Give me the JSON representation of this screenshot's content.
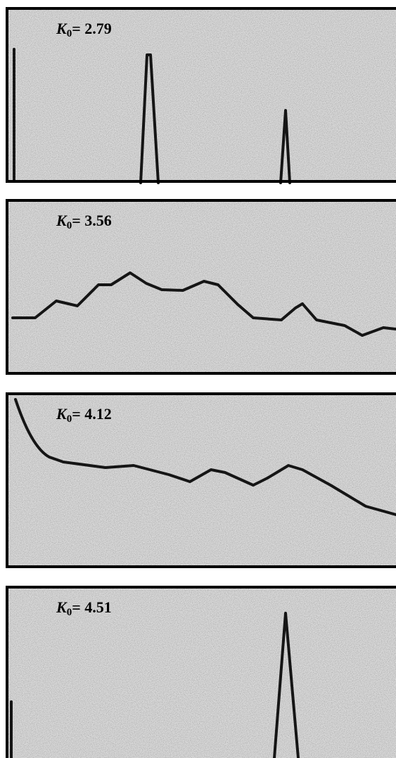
{
  "panels": [
    {
      "label": {
        "symbol": "K",
        "subscript": "0",
        "text": "= 2.79"
      }
    },
    {
      "label": {
        "symbol": "K",
        "subscript": "0",
        "text": "= 3.56"
      }
    },
    {
      "label": {
        "symbol": "K",
        "subscript": "0",
        "text": "= 4.12"
      }
    },
    {
      "label": {
        "symbol": "K",
        "subscript": "0",
        "text": "= 4.51"
      }
    }
  ]
}
